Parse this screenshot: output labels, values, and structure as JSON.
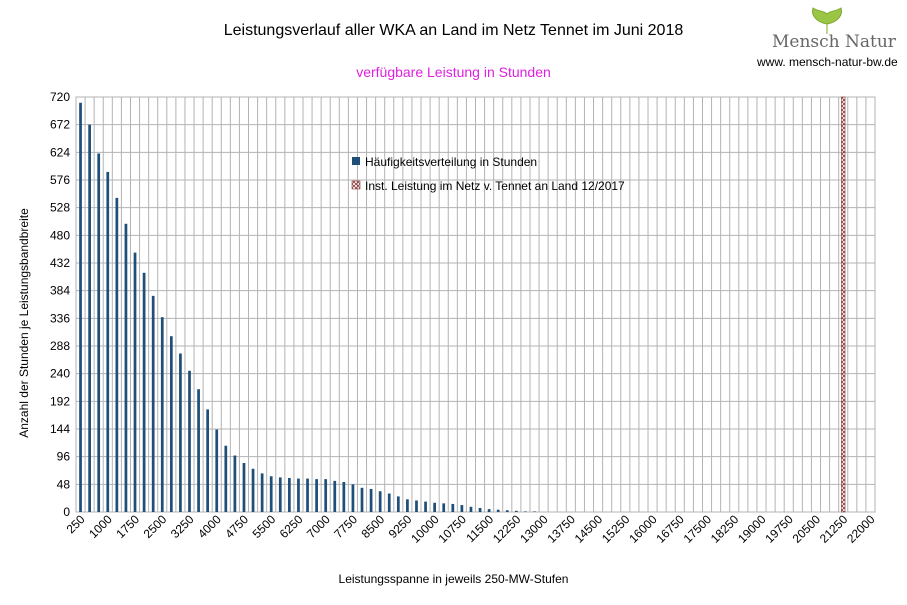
{
  "colors": {
    "bar": "#1f4e79",
    "grid": "#b3b3b3",
    "subtitle": "#e020e0",
    "logo_leaf": "#9bc544",
    "hatch": "#8b3a3a"
  },
  "logo": {
    "name": "Mensch Natur",
    "url": "www. mensch-natur-bw.de"
  },
  "chart_data": {
    "type": "bar",
    "title": "Leistungsverlauf aller WKA an Land im Netz Tennet im Juni 2018",
    "subtitle": "verfügbare Leistung in Stunden",
    "xlabel": "Leistungsspanne in jeweils 250-MW-Stufen",
    "ylabel": "Anzahl der Stunden je Leistungsbandbreite",
    "ylim": [
      0,
      720
    ],
    "yticks": [
      0,
      48,
      96,
      144,
      192,
      240,
      288,
      336,
      384,
      432,
      480,
      528,
      576,
      624,
      672,
      720
    ],
    "xticks": [
      "250",
      "1000",
      "1750",
      "2500",
      "3250",
      "4000",
      "4750",
      "5500",
      "6250",
      "7000",
      "7750",
      "8500",
      "9250",
      "10000",
      "10750",
      "11500",
      "12250",
      "13000",
      "13750",
      "14500",
      "15250",
      "16000",
      "16750",
      "17500",
      "18250",
      "19000",
      "19750",
      "20500",
      "21250",
      "22000"
    ],
    "x_range": [
      250,
      22000
    ],
    "step": 250,
    "grid": true,
    "legend_position": "top-center",
    "series": [
      {
        "name": "Häufigkeitsverteilung in Stunden",
        "x": [
          250,
          500,
          750,
          1000,
          1250,
          1500,
          1750,
          2000,
          2250,
          2500,
          2750,
          3000,
          3250,
          3500,
          3750,
          4000,
          4250,
          4500,
          4750,
          5000,
          5250,
          5500,
          5750,
          6000,
          6250,
          6500,
          6750,
          7000,
          7250,
          7500,
          7750,
          8000,
          8250,
          8500,
          8750,
          9000,
          9250,
          9500,
          9750,
          10000,
          10250,
          10500,
          10750,
          11000,
          11250,
          11500,
          11750,
          12000,
          12250,
          12500,
          12750
        ],
        "values": [
          710,
          672,
          622,
          590,
          545,
          500,
          450,
          415,
          375,
          338,
          305,
          275,
          245,
          213,
          178,
          143,
          115,
          98,
          85,
          75,
          67,
          62,
          60,
          59,
          58,
          58,
          57,
          57,
          54,
          52,
          48,
          42,
          40,
          36,
          32,
          27,
          22,
          20,
          18,
          16,
          15,
          14,
          12,
          9,
          7,
          5,
          4,
          3,
          2,
          1,
          1
        ]
      },
      {
        "name": "Inst. Leistung im Netz v. Tennet an Land 12/2017",
        "x": [
          21250
        ],
        "values": [
          720
        ]
      }
    ]
  }
}
